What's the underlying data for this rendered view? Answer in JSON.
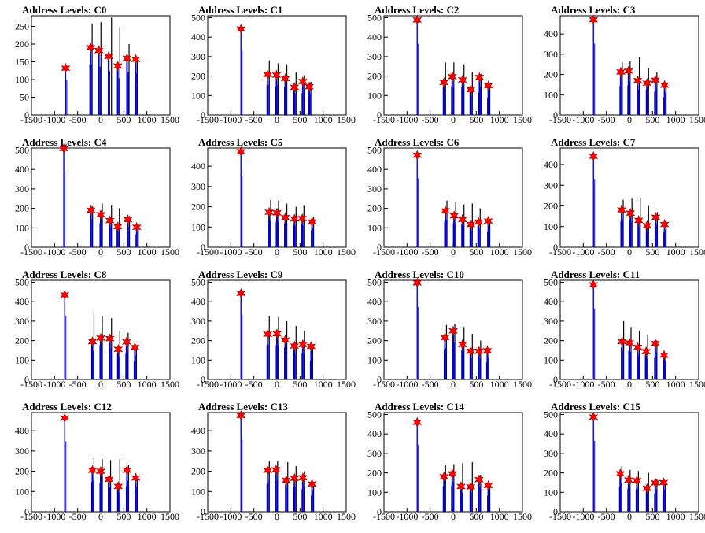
{
  "chart_data": [
    {
      "type": "bar",
      "title": "Address Levels: C0",
      "xlim": [
        -1500,
        1500
      ],
      "ylim": [
        0,
        280
      ],
      "yticks": [
        0,
        50,
        100,
        150,
        200,
        250
      ],
      "stars": [
        [
          -760,
          132
        ],
        [
          -220,
          190
        ],
        [
          -40,
          182
        ],
        [
          170,
          165
        ],
        [
          370,
          138
        ],
        [
          570,
          160
        ],
        [
          760,
          157
        ]
      ],
      "black_peaks": [
        [
          -220,
          258
        ],
        [
          -30,
          262
        ],
        [
          200,
          275
        ],
        [
          380,
          248
        ],
        [
          580,
          200
        ],
        [
          760,
          150
        ]
      ]
    },
    {
      "type": "bar",
      "title": "Address Levels: C1",
      "xlim": [
        -1500,
        1500
      ],
      "ylim": [
        0,
        510
      ],
      "yticks": [
        0,
        100,
        200,
        300,
        400,
        500
      ],
      "stars": [
        [
          -780,
          442
        ],
        [
          -200,
          208
        ],
        [
          -10,
          205
        ],
        [
          180,
          187
        ],
        [
          380,
          142
        ],
        [
          560,
          172
        ],
        [
          700,
          145
        ]
      ],
      "black_peaks": [
        [
          -200,
          280
        ],
        [
          -10,
          265
        ],
        [
          180,
          260
        ],
        [
          380,
          220
        ],
        [
          560,
          205
        ],
        [
          700,
          170
        ]
      ]
    },
    {
      "type": "bar",
      "title": "Address Levels: C2",
      "xlim": [
        -1500,
        1500
      ],
      "ylim": [
        0,
        510
      ],
      "yticks": [
        0,
        100,
        200,
        300,
        400,
        500
      ],
      "stars": [
        [
          -780,
          488
        ],
        [
          -200,
          167
        ],
        [
          -20,
          197
        ],
        [
          200,
          180
        ],
        [
          380,
          130
        ],
        [
          570,
          193
        ],
        [
          760,
          150
        ]
      ],
      "black_peaks": [
        [
          -200,
          270
        ],
        [
          -20,
          270
        ],
        [
          200,
          260
        ],
        [
          380,
          220
        ],
        [
          570,
          210
        ],
        [
          760,
          160
        ]
      ]
    },
    {
      "type": "bar",
      "title": "Address Levels: C3",
      "xlim": [
        -1500,
        1500
      ],
      "ylim": [
        0,
        490
      ],
      "yticks": [
        0,
        100,
        200,
        300,
        400
      ],
      "stars": [
        [
          -780,
          470
        ],
        [
          -190,
          212
        ],
        [
          -20,
          217
        ],
        [
          180,
          170
        ],
        [
          380,
          157
        ],
        [
          560,
          172
        ],
        [
          760,
          147
        ]
      ],
      "black_peaks": [
        [
          -190,
          260
        ],
        [
          -20,
          265
        ],
        [
          180,
          285
        ],
        [
          380,
          230
        ],
        [
          560,
          210
        ],
        [
          760,
          160
        ]
      ]
    },
    {
      "type": "bar",
      "title": "Address Levels: C4",
      "xlim": [
        -1500,
        1500
      ],
      "ylim": [
        0,
        510
      ],
      "yticks": [
        0,
        100,
        200,
        300,
        400,
        500
      ],
      "stars": [
        [
          -800,
          507
        ],
        [
          -210,
          190
        ],
        [
          0,
          167
        ],
        [
          200,
          137
        ],
        [
          370,
          106
        ],
        [
          590,
          142
        ],
        [
          780,
          103
        ]
      ],
      "black_peaks": [
        [
          -210,
          210
        ],
        [
          0,
          225
        ],
        [
          200,
          215
        ],
        [
          370,
          200
        ],
        [
          590,
          160
        ],
        [
          780,
          120
        ]
      ]
    },
    {
      "type": "bar",
      "title": "Address Levels: C5",
      "xlim": [
        -1500,
        1500
      ],
      "ylim": [
        0,
        490
      ],
      "yticks": [
        0,
        100,
        200,
        300,
        400
      ],
      "stars": [
        [
          -780,
          472
        ],
        [
          -170,
          173
        ],
        [
          0,
          170
        ],
        [
          180,
          147
        ],
        [
          380,
          140
        ],
        [
          550,
          142
        ],
        [
          760,
          125
        ]
      ],
      "black_peaks": [
        [
          -170,
          235
        ],
        [
          0,
          230
        ],
        [
          180,
          215
        ],
        [
          380,
          200
        ],
        [
          550,
          205
        ],
        [
          760,
          150
        ]
      ]
    },
    {
      "type": "bar",
      "title": "Address Levels: C6",
      "xlim": [
        -1500,
        1500
      ],
      "ylim": [
        0,
        510
      ],
      "yticks": [
        0,
        100,
        200,
        300,
        400,
        500
      ],
      "stars": [
        [
          -780,
          473
        ],
        [
          -170,
          187
        ],
        [
          20,
          162
        ],
        [
          200,
          143
        ],
        [
          380,
          117
        ],
        [
          550,
          129
        ],
        [
          760,
          135
        ]
      ],
      "black_peaks": [
        [
          -170,
          240
        ],
        [
          20,
          230
        ],
        [
          200,
          220
        ],
        [
          380,
          225
        ],
        [
          550,
          200
        ],
        [
          760,
          140
        ]
      ]
    },
    {
      "type": "bar",
      "title": "Address Levels: C7",
      "xlim": [
        -1500,
        1500
      ],
      "ylim": [
        0,
        480
      ],
      "yticks": [
        0,
        100,
        200,
        300,
        400
      ],
      "stars": [
        [
          -780,
          440
        ],
        [
          -170,
          180
        ],
        [
          20,
          165
        ],
        [
          200,
          130
        ],
        [
          380,
          105
        ],
        [
          570,
          145
        ],
        [
          760,
          110
        ]
      ],
      "black_peaks": [
        [
          -170,
          230
        ],
        [
          20,
          235
        ],
        [
          200,
          240
        ],
        [
          380,
          200
        ],
        [
          570,
          170
        ],
        [
          760,
          130
        ]
      ]
    },
    {
      "type": "bar",
      "title": "Address Levels: C8",
      "xlim": [
        -1500,
        1500
      ],
      "ylim": [
        0,
        510
      ],
      "yticks": [
        0,
        100,
        200,
        300,
        400,
        500
      ],
      "stars": [
        [
          -780,
          435
        ],
        [
          -180,
          195
        ],
        [
          0,
          213
        ],
        [
          200,
          210
        ],
        [
          380,
          155
        ],
        [
          560,
          193
        ],
        [
          740,
          165
        ]
      ],
      "black_peaks": [
        [
          -180,
          340
        ],
        [
          0,
          325
        ],
        [
          200,
          315
        ],
        [
          380,
          250
        ],
        [
          560,
          240
        ],
        [
          740,
          170
        ]
      ]
    },
    {
      "type": "bar",
      "title": "Address Levels: C9",
      "xlim": [
        -1500,
        1500
      ],
      "ylim": [
        0,
        510
      ],
      "yticks": [
        0,
        100,
        200,
        300,
        400,
        500
      ],
      "stars": [
        [
          -780,
          443
        ],
        [
          -200,
          233
        ],
        [
          0,
          235
        ],
        [
          180,
          203
        ],
        [
          380,
          172
        ],
        [
          560,
          180
        ],
        [
          740,
          170
        ]
      ],
      "black_peaks": [
        [
          -200,
          325
        ],
        [
          0,
          320
        ],
        [
          180,
          300
        ],
        [
          380,
          275
        ],
        [
          560,
          250
        ],
        [
          740,
          175
        ]
      ]
    },
    {
      "type": "bar",
      "title": "Address Levels: C10",
      "xlim": [
        -1500,
        1500
      ],
      "ylim": [
        0,
        510
      ],
      "yticks": [
        0,
        100,
        200,
        300,
        400,
        500
      ],
      "stars": [
        [
          -780,
          497
        ],
        [
          -180,
          215
        ],
        [
          0,
          250
        ],
        [
          200,
          180
        ],
        [
          380,
          145
        ],
        [
          560,
          145
        ],
        [
          740,
          148
        ]
      ],
      "black_peaks": [
        [
          -180,
          280
        ],
        [
          0,
          285
        ],
        [
          200,
          270
        ],
        [
          380,
          235
        ],
        [
          560,
          200
        ],
        [
          740,
          160
        ]
      ]
    },
    {
      "type": "bar",
      "title": "Address Levels: C11",
      "xlim": [
        -1500,
        1500
      ],
      "ylim": [
        0,
        510
      ],
      "yticks": [
        0,
        100,
        200,
        300,
        400,
        500
      ],
      "stars": [
        [
          -780,
          487
        ],
        [
          -160,
          195
        ],
        [
          0,
          188
        ],
        [
          180,
          165
        ],
        [
          360,
          143
        ],
        [
          560,
          185
        ],
        [
          750,
          125
        ]
      ],
      "black_peaks": [
        [
          -160,
          300
        ],
        [
          0,
          270
        ],
        [
          180,
          250
        ],
        [
          360,
          230
        ],
        [
          560,
          200
        ],
        [
          750,
          135
        ]
      ]
    },
    {
      "type": "bar",
      "title": "Address Levels: C12",
      "xlim": [
        -1500,
        1500
      ],
      "ylim": [
        0,
        490
      ],
      "yticks": [
        0,
        100,
        200,
        300,
        400
      ],
      "stars": [
        [
          -780,
          463
        ],
        [
          -180,
          205
        ],
        [
          0,
          200
        ],
        [
          180,
          160
        ],
        [
          380,
          125
        ],
        [
          570,
          205
        ],
        [
          760,
          167
        ]
      ],
      "black_peaks": [
        [
          -180,
          265
        ],
        [
          0,
          260
        ],
        [
          180,
          255
        ],
        [
          380,
          260
        ],
        [
          570,
          230
        ],
        [
          760,
          175
        ]
      ]
    },
    {
      "type": "bar",
      "title": "Address Levels: C13",
      "xlim": [
        -1500,
        1500
      ],
      "ylim": [
        0,
        490
      ],
      "yticks": [
        0,
        100,
        200,
        300,
        400
      ],
      "stars": [
        [
          -780,
          475
        ],
        [
          -200,
          205
        ],
        [
          -20,
          207
        ],
        [
          200,
          155
        ],
        [
          380,
          165
        ],
        [
          560,
          168
        ],
        [
          760,
          137
        ]
      ],
      "black_peaks": [
        [
          -200,
          250
        ],
        [
          -20,
          250
        ],
        [
          200,
          245
        ],
        [
          380,
          225
        ],
        [
          560,
          200
        ],
        [
          760,
          145
        ]
      ]
    },
    {
      "type": "bar",
      "title": "Address Levels: C14",
      "xlim": [
        -1500,
        1500
      ],
      "ylim": [
        0,
        510
      ],
      "yticks": [
        0,
        100,
        200,
        300,
        400,
        500
      ],
      "stars": [
        [
          -780,
          460
        ],
        [
          -200,
          180
        ],
        [
          -20,
          195
        ],
        [
          170,
          130
        ],
        [
          380,
          128
        ],
        [
          560,
          165
        ],
        [
          760,
          135
        ]
      ],
      "black_peaks": [
        [
          -200,
          240
        ],
        [
          -20,
          245
        ],
        [
          170,
          250
        ],
        [
          380,
          255
        ],
        [
          560,
          190
        ],
        [
          760,
          150
        ]
      ]
    },
    {
      "type": "bar",
      "title": "Address Levels: C15",
      "xlim": [
        -1500,
        1500
      ],
      "ylim": [
        0,
        510
      ],
      "yticks": [
        0,
        100,
        200,
        300,
        400,
        500
      ],
      "stars": [
        [
          -780,
          487
        ],
        [
          -200,
          195
        ],
        [
          -20,
          163
        ],
        [
          160,
          160
        ],
        [
          380,
          120
        ],
        [
          560,
          148
        ],
        [
          740,
          150
        ]
      ],
      "black_peaks": [
        [
          -200,
          235
        ],
        [
          -20,
          215
        ],
        [
          160,
          210
        ],
        [
          380,
          200
        ],
        [
          560,
          170
        ],
        [
          740,
          155
        ]
      ]
    }
  ],
  "common": {
    "xticks": [
      -1500,
      -1000,
      -500,
      0,
      500,
      1000,
      1500
    ],
    "xtick_labels": [
      "-1500",
      "-1000",
      "-500",
      "0",
      "500",
      "1000",
      "1500"
    ],
    "colors": {
      "blue_bars": "#0000e6",
      "black_bars": "#000000",
      "stars": "#ff0000",
      "star_outline": "#aa0000"
    }
  }
}
